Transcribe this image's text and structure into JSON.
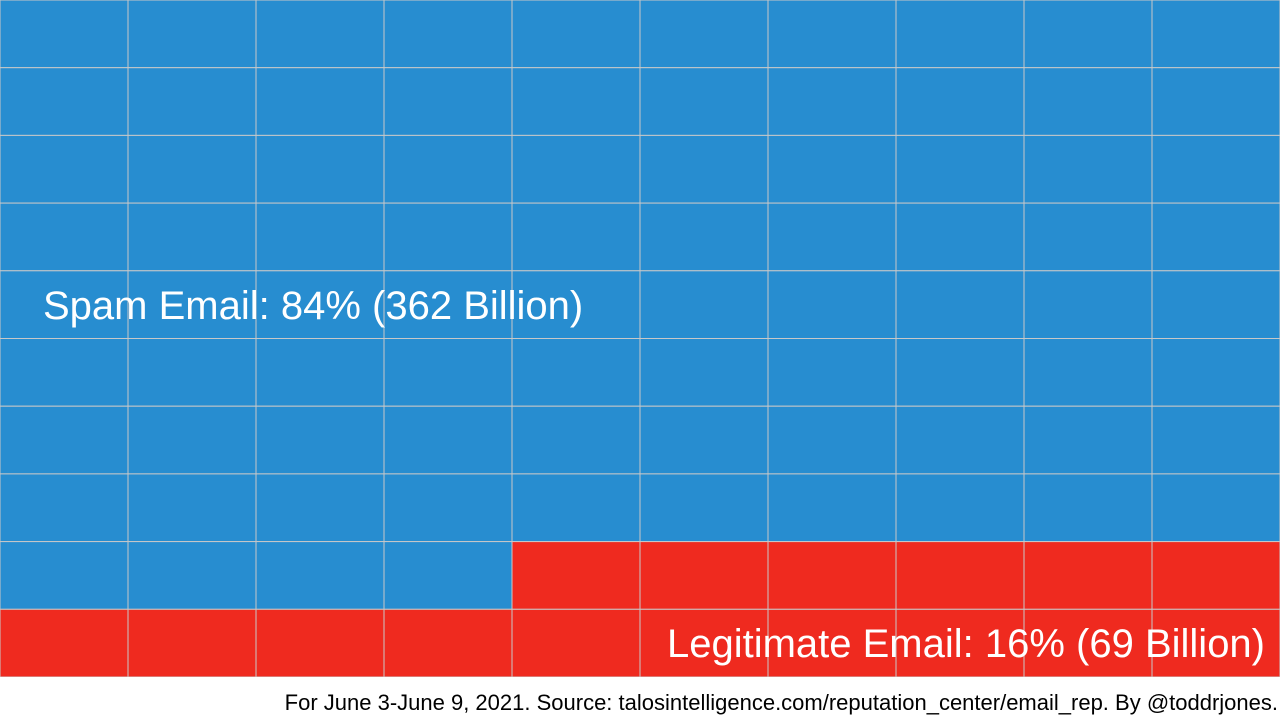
{
  "chart_data": {
    "type": "waffle",
    "grid": {
      "rows": 10,
      "cols": 10,
      "fill_order": "top-left, row by row"
    },
    "series": [
      {
        "name": "Spam Email",
        "cells": 84,
        "color": "#278dd0",
        "label": "Spam Email: 84% (362 Billion)"
      },
      {
        "name": "Legitimate Email",
        "cells": 16,
        "color": "#ef2a1f",
        "label": "Legitimate Email: 16% (69 Billion)"
      }
    ],
    "gridline_color": "#c8c8c8"
  },
  "footer": {
    "source": "For June 3-June 9, 2021. Source: talosintelligence.com/reputation_center/email_rep. By @toddrjones."
  }
}
